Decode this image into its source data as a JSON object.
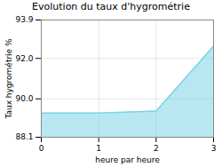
{
  "chart_data": {
    "type": "area",
    "title": "Evolution du taux d'hygrométrie",
    "xlabel": "heure par heure",
    "ylabel": "Taux hygrométrie %",
    "x": [
      0,
      1,
      2,
      3
    ],
    "values": [
      89.3,
      89.3,
      89.4,
      92.6
    ],
    "color": "#7dd4e8",
    "xlim": [
      0,
      3
    ],
    "ylim": [
      88.1,
      93.9
    ],
    "xticks": [
      0,
      1,
      2,
      3
    ],
    "yticks": [
      88.1,
      {
        "value": 90,
        "label": "90.0"
      },
      {
        "value": 92,
        "label": "92.0"
      },
      93.9
    ],
    "grid": true
  }
}
